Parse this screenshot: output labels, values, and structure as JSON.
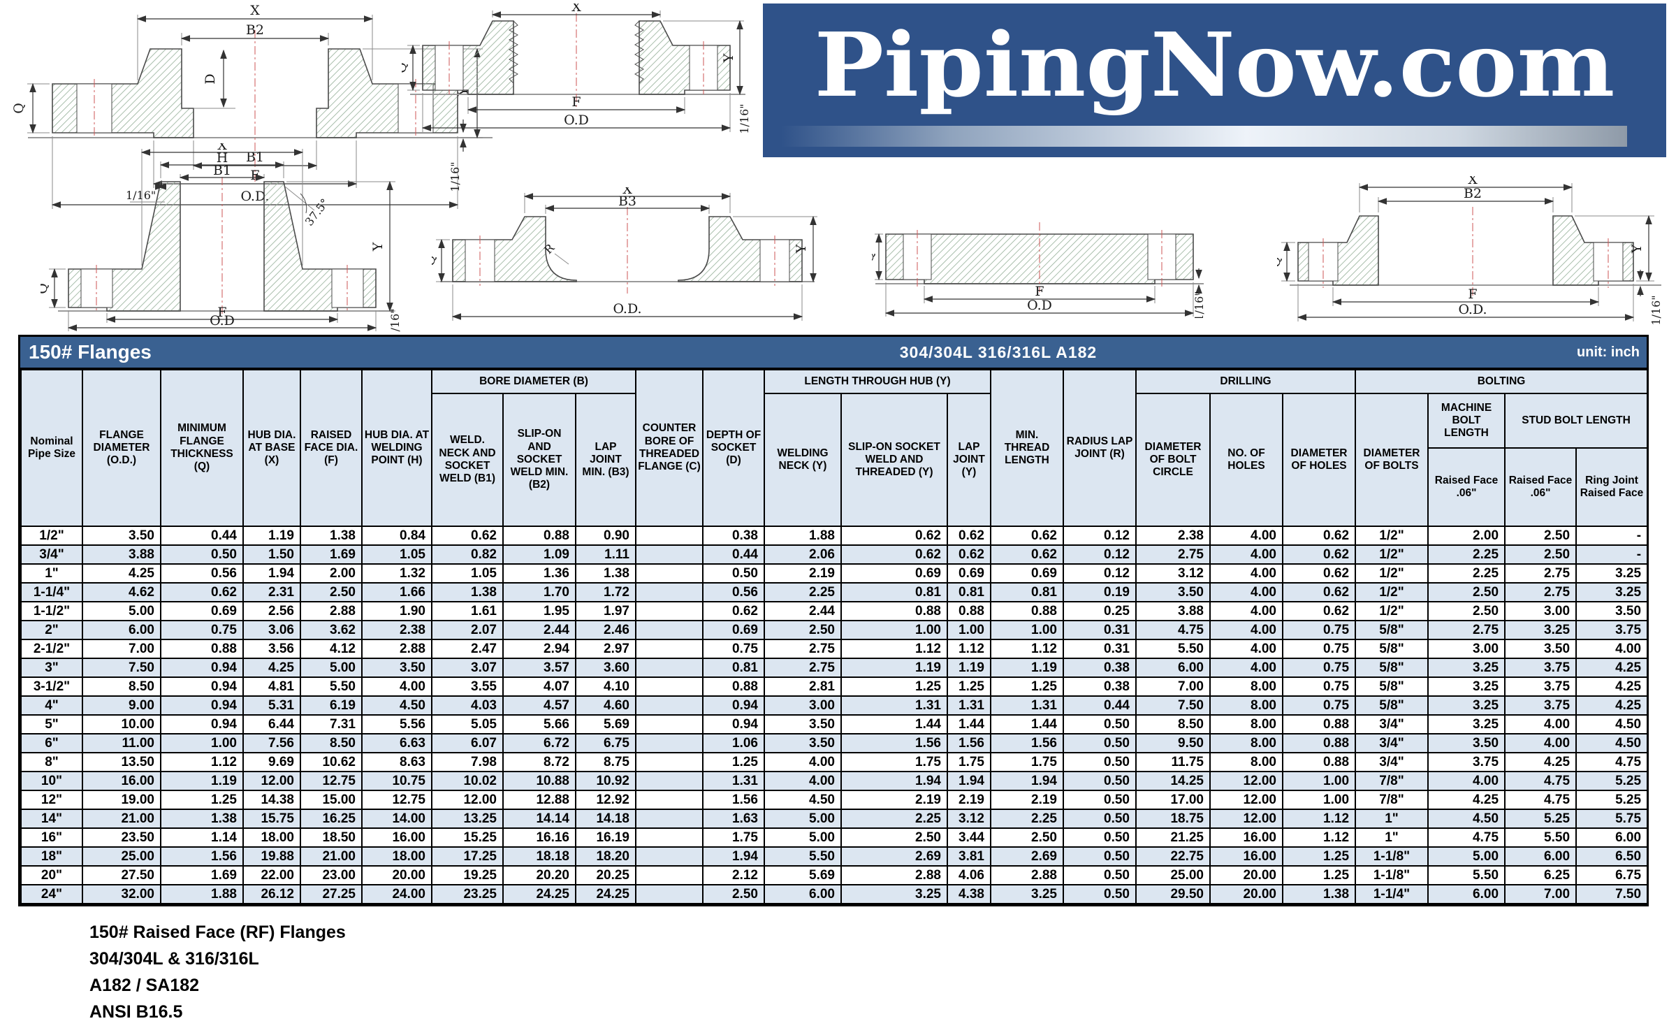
{
  "logo": {
    "text": "PipingNow.com"
  },
  "title_bar": {
    "left": "150# Flanges",
    "center": "304/304L  316/316L  A182",
    "right": "unit: inch"
  },
  "diagrams": {
    "sw": {
      "x": "X",
      "b2": "B2",
      "d": "D",
      "b1": "B1",
      "f": "F",
      "od": "O.D.",
      "q": "Q",
      "y": "Y",
      "gap": "1/16\""
    },
    "thr": {
      "x": "X",
      "q": "Q",
      "f": "F",
      "od": "O.D",
      "y": "Y",
      "gap": "1/16\""
    },
    "wn": {
      "x": "X",
      "h": "H",
      "b1": "B1",
      "neck": "1/16\"",
      "angle": "37.5°",
      "q": "Q",
      "f": "F",
      "od": "O.D",
      "y": "Y",
      "gap": "1/16\""
    },
    "lj": {
      "x": "X",
      "b3": "B3",
      "r": "R",
      "q": "Q",
      "od": "O.D.",
      "y": "Y"
    },
    "bl": {
      "q": "Q",
      "f": "F",
      "od": "O.D",
      "gap": "1/16\""
    },
    "so": {
      "x": "X",
      "b2": "B2",
      "q": "Q",
      "f": "F",
      "od": "O.D.",
      "y": "Y",
      "gap": "1/16\""
    }
  },
  "table": {
    "groups": {
      "bore": "BORE DIAMETER (B)",
      "length": "LENGTH THROUGH HUB (Y)",
      "drilling": "DRILLING",
      "bolting": "BOLTING",
      "machine_bolt": "MACHINE BOLT LENGTH",
      "stud_bolt": "STUD BOLT LENGTH"
    },
    "headers": {
      "nominal": "Nominal Pipe Size",
      "od": "FLANGE DIAMETER (O.D.)",
      "q": "MINIMUM FLANGE THICKNESS (Q)",
      "x": "HUB DIA. AT BASE (X)",
      "f": "RAISED FACE DIA. (F)",
      "h": "HUB DIA. AT WELDING POINT (H)",
      "b1": "WELD. NECK AND SOCKET WELD (B1)",
      "b2": "SLIP-ON AND SOCKET WELD MIN. (B2)",
      "b3": "LAP JOINT MIN. (B3)",
      "c": "COUNTER BORE OF THREADED FLANGE (C)",
      "d": "DEPTH OF SOCKET (D)",
      "y_wn": "WELDING NECK (Y)",
      "y_so": "SLIP-ON SOCKET WELD AND THREADED (Y)",
      "y_lj": "LAP JOINT (Y)",
      "min_thread": "MIN. THREAD LENGTH",
      "radius": "RADIUS LAP JOINT (R)",
      "bolt_circle": "DIAMETER OF BOLT CIRCLE",
      "no_holes": "NO. OF HOLES",
      "dia_holes": "DIAMETER OF HOLES",
      "dia_bolts": "DIAMETER OF BOLTS",
      "machine_rf": "Raised Face .06\"",
      "stud_rf": "Raised Face .06\"",
      "stud_rj": "Ring Joint Raised Face"
    },
    "rows": [
      [
        "1/2\"",
        "3.50",
        "0.44",
        "1.19",
        "1.38",
        "0.84",
        "0.62",
        "0.88",
        "0.90",
        "",
        "0.38",
        "1.88",
        "0.62",
        "0.62",
        "0.62",
        "0.12",
        "2.38",
        "4.00",
        "0.62",
        "1/2\"",
        "2.00",
        "2.50",
        "-"
      ],
      [
        "3/4\"",
        "3.88",
        "0.50",
        "1.50",
        "1.69",
        "1.05",
        "0.82",
        "1.09",
        "1.11",
        "",
        "0.44",
        "2.06",
        "0.62",
        "0.62",
        "0.62",
        "0.12",
        "2.75",
        "4.00",
        "0.62",
        "1/2\"",
        "2.25",
        "2.50",
        "-"
      ],
      [
        "1\"",
        "4.25",
        "0.56",
        "1.94",
        "2.00",
        "1.32",
        "1.05",
        "1.36",
        "1.38",
        "",
        "0.50",
        "2.19",
        "0.69",
        "0.69",
        "0.69",
        "0.12",
        "3.12",
        "4.00",
        "0.62",
        "1/2\"",
        "2.25",
        "2.75",
        "3.25"
      ],
      [
        "1-1/4\"",
        "4.62",
        "0.62",
        "2.31",
        "2.50",
        "1.66",
        "1.38",
        "1.70",
        "1.72",
        "",
        "0.56",
        "2.25",
        "0.81",
        "0.81",
        "0.81",
        "0.19",
        "3.50",
        "4.00",
        "0.62",
        "1/2\"",
        "2.50",
        "2.75",
        "3.25"
      ],
      [
        "1-1/2\"",
        "5.00",
        "0.69",
        "2.56",
        "2.88",
        "1.90",
        "1.61",
        "1.95",
        "1.97",
        "",
        "0.62",
        "2.44",
        "0.88",
        "0.88",
        "0.88",
        "0.25",
        "3.88",
        "4.00",
        "0.62",
        "1/2\"",
        "2.50",
        "3.00",
        "3.50"
      ],
      [
        "2\"",
        "6.00",
        "0.75",
        "3.06",
        "3.62",
        "2.38",
        "2.07",
        "2.44",
        "2.46",
        "",
        "0.69",
        "2.50",
        "1.00",
        "1.00",
        "1.00",
        "0.31",
        "4.75",
        "4.00",
        "0.75",
        "5/8\"",
        "2.75",
        "3.25",
        "3.75"
      ],
      [
        "2-1/2\"",
        "7.00",
        "0.88",
        "3.56",
        "4.12",
        "2.88",
        "2.47",
        "2.94",
        "2.97",
        "",
        "0.75",
        "2.75",
        "1.12",
        "1.12",
        "1.12",
        "0.31",
        "5.50",
        "4.00",
        "0.75",
        "5/8\"",
        "3.00",
        "3.50",
        "4.00"
      ],
      [
        "3\"",
        "7.50",
        "0.94",
        "4.25",
        "5.00",
        "3.50",
        "3.07",
        "3.57",
        "3.60",
        "",
        "0.81",
        "2.75",
        "1.19",
        "1.19",
        "1.19",
        "0.38",
        "6.00",
        "4.00",
        "0.75",
        "5/8\"",
        "3.25",
        "3.75",
        "4.25"
      ],
      [
        "3-1/2\"",
        "8.50",
        "0.94",
        "4.81",
        "5.50",
        "4.00",
        "3.55",
        "4.07",
        "4.10",
        "",
        "0.88",
        "2.81",
        "1.25",
        "1.25",
        "1.25",
        "0.38",
        "7.00",
        "8.00",
        "0.75",
        "5/8\"",
        "3.25",
        "3.75",
        "4.25"
      ],
      [
        "4\"",
        "9.00",
        "0.94",
        "5.31",
        "6.19",
        "4.50",
        "4.03",
        "4.57",
        "4.60",
        "",
        "0.94",
        "3.00",
        "1.31",
        "1.31",
        "1.31",
        "0.44",
        "7.50",
        "8.00",
        "0.75",
        "5/8\"",
        "3.25",
        "3.75",
        "4.25"
      ],
      [
        "5\"",
        "10.00",
        "0.94",
        "6.44",
        "7.31",
        "5.56",
        "5.05",
        "5.66",
        "5.69",
        "",
        "0.94",
        "3.50",
        "1.44",
        "1.44",
        "1.44",
        "0.50",
        "8.50",
        "8.00",
        "0.88",
        "3/4\"",
        "3.25",
        "4.00",
        "4.50"
      ],
      [
        "6\"",
        "11.00",
        "1.00",
        "7.56",
        "8.50",
        "6.63",
        "6.07",
        "6.72",
        "6.75",
        "",
        "1.06",
        "3.50",
        "1.56",
        "1.56",
        "1.56",
        "0.50",
        "9.50",
        "8.00",
        "0.88",
        "3/4\"",
        "3.50",
        "4.00",
        "4.50"
      ],
      [
        "8\"",
        "13.50",
        "1.12",
        "9.69",
        "10.62",
        "8.63",
        "7.98",
        "8.72",
        "8.75",
        "",
        "1.25",
        "4.00",
        "1.75",
        "1.75",
        "1.75",
        "0.50",
        "11.75",
        "8.00",
        "0.88",
        "3/4\"",
        "3.75",
        "4.25",
        "4.75"
      ],
      [
        "10\"",
        "16.00",
        "1.19",
        "12.00",
        "12.75",
        "10.75",
        "10.02",
        "10.88",
        "10.92",
        "",
        "1.31",
        "4.00",
        "1.94",
        "1.94",
        "1.94",
        "0.50",
        "14.25",
        "12.00",
        "1.00",
        "7/8\"",
        "4.00",
        "4.75",
        "5.25"
      ],
      [
        "12\"",
        "19.00",
        "1.25",
        "14.38",
        "15.00",
        "12.75",
        "12.00",
        "12.88",
        "12.92",
        "",
        "1.56",
        "4.50",
        "2.19",
        "2.19",
        "2.19",
        "0.50",
        "17.00",
        "12.00",
        "1.00",
        "7/8\"",
        "4.25",
        "4.75",
        "5.25"
      ],
      [
        "14\"",
        "21.00",
        "1.38",
        "15.75",
        "16.25",
        "14.00",
        "13.25",
        "14.14",
        "14.18",
        "",
        "1.63",
        "5.00",
        "2.25",
        "3.12",
        "2.25",
        "0.50",
        "18.75",
        "12.00",
        "1.12",
        "1\"",
        "4.50",
        "5.25",
        "5.75"
      ],
      [
        "16\"",
        "23.50",
        "1.14",
        "18.00",
        "18.50",
        "16.00",
        "15.25",
        "16.16",
        "16.19",
        "",
        "1.75",
        "5.00",
        "2.50",
        "3.44",
        "2.50",
        "0.50",
        "21.25",
        "16.00",
        "1.12",
        "1\"",
        "4.75",
        "5.50",
        "6.00"
      ],
      [
        "18\"",
        "25.00",
        "1.56",
        "19.88",
        "21.00",
        "18.00",
        "17.25",
        "18.18",
        "18.20",
        "",
        "1.94",
        "5.50",
        "2.69",
        "3.81",
        "2.69",
        "0.50",
        "22.75",
        "16.00",
        "1.25",
        "1-1/8\"",
        "5.00",
        "6.00",
        "6.50"
      ],
      [
        "20\"",
        "27.50",
        "1.69",
        "22.00",
        "23.00",
        "20.00",
        "19.25",
        "20.20",
        "20.25",
        "",
        "2.12",
        "5.69",
        "2.88",
        "4.06",
        "2.88",
        "0.50",
        "25.00",
        "20.00",
        "1.25",
        "1-1/8\"",
        "5.50",
        "6.25",
        "6.75"
      ],
      [
        "24\"",
        "32.00",
        "1.88",
        "26.12",
        "27.25",
        "24.00",
        "23.25",
        "24.25",
        "24.25",
        "",
        "2.50",
        "6.00",
        "3.25",
        "4.38",
        "3.25",
        "0.50",
        "29.50",
        "20.00",
        "1.38",
        "1-1/4\"",
        "6.00",
        "7.00",
        "7.50"
      ]
    ]
  },
  "footer": {
    "lines": [
      "150# Raised Face (RF) Flanges",
      "304/304L & 316/316L",
      "A182 / SA182",
      "ANSI B16.5"
    ]
  },
  "colors": {
    "title_bar": "#3a6191",
    "logo_background": "#2f5289",
    "stripe": "#dce6f1",
    "header_background": "#dce6f1",
    "hatch": "#93ae97",
    "centerline": "#cc5555"
  }
}
